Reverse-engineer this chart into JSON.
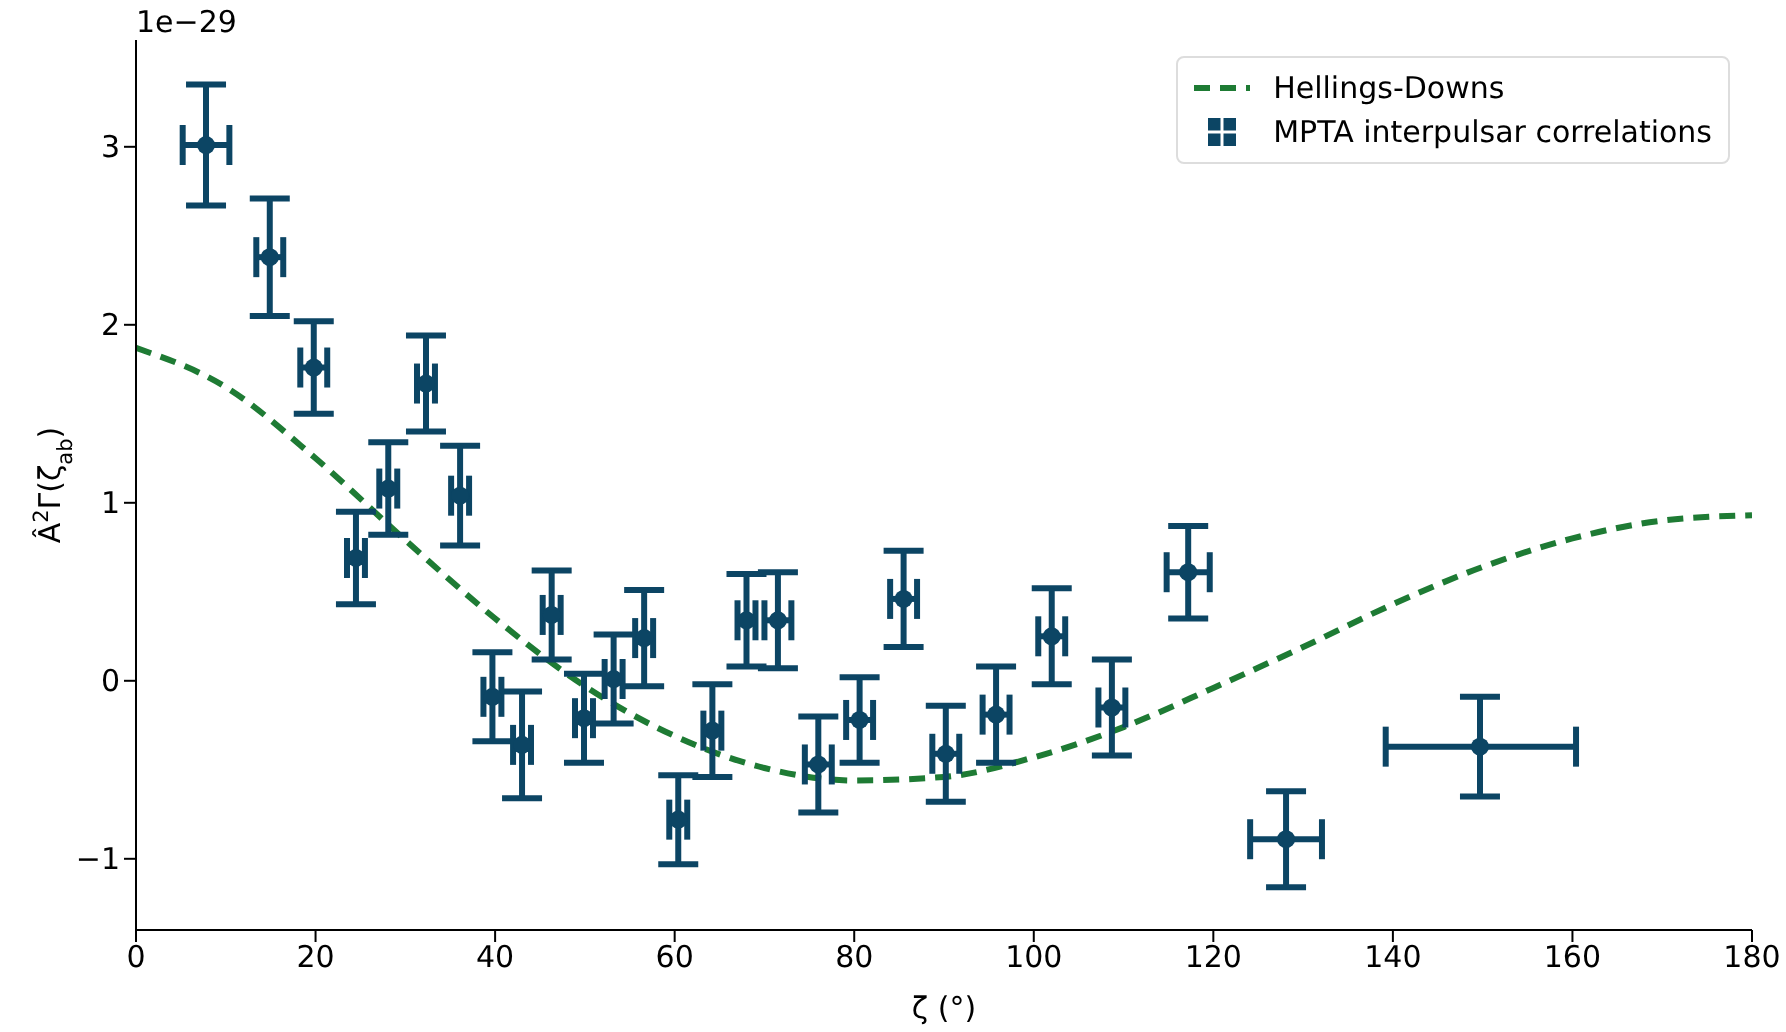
{
  "chart_data": {
    "type": "scatter",
    "xlabel": "ζ (°)",
    "ylabel": "Â$^{2}$Γ(ζ$_{ab}$)",
    "annotations": [
      "1e−29"
    ],
    "xlim": [
      0,
      180
    ],
    "xticks": [
      0,
      20,
      40,
      60,
      80,
      100,
      120,
      140,
      160,
      180
    ],
    "ylim": [
      -1.4,
      3.6
    ],
    "yticks": [
      -1,
      0,
      1,
      2,
      3
    ],
    "grid": false,
    "legend": "top right",
    "series": [
      {
        "name": "Hellings-Downs",
        "type": "line",
        "line_style": "dashed",
        "marker": "none",
        "color": "#1e7b34",
        "x": [
          0,
          10,
          20,
          30,
          40,
          50,
          60,
          70,
          80,
          90,
          100,
          110,
          120,
          130,
          140,
          150,
          160,
          170,
          180
        ],
        "values": [
          1.87,
          1.65,
          1.25,
          0.79,
          0.35,
          -0.03,
          -0.31,
          -0.49,
          -0.56,
          -0.54,
          -0.43,
          -0.26,
          -0.04,
          0.19,
          0.43,
          0.64,
          0.8,
          0.9,
          0.93
        ]
      },
      {
        "name": "MPTA interpulsar correlations",
        "marker": "circle",
        "color": "#0c4564",
        "x": [
          7.8,
          14.9,
          19.8,
          24.5,
          28.1,
          32.3,
          36.1,
          39.7,
          43,
          46.3,
          49.9,
          53.2,
          56.6,
          60.4,
          64.2,
          68,
          71.5,
          76,
          80.6,
          85.5,
          90.2,
          95.8,
          102,
          108.7,
          117.2,
          128.1,
          149.7
        ],
        "values": [
          3.01,
          2.38,
          1.76,
          0.69,
          1.08,
          1.67,
          1.04,
          -0.09,
          -0.36,
          0.37,
          -0.21,
          0.01,
          0.24,
          -0.78,
          -0.28,
          0.34,
          0.34,
          -0.47,
          -0.22,
          0.46,
          -0.41,
          -0.19,
          0.25,
          -0.15,
          0.61,
          -0.89,
          -0.37
        ],
        "errors": [
          0.34,
          0.33,
          0.26,
          0.26,
          0.26,
          0.27,
          0.28,
          0.25,
          0.3,
          0.25,
          0.25,
          0.25,
          0.27,
          0.25,
          0.26,
          0.26,
          0.27,
          0.27,
          0.24,
          0.27,
          0.27,
          0.27,
          0.27,
          0.27,
          0.26,
          0.27,
          0.28
        ],
        "xerrors": [
          2.6,
          1.5,
          1.5,
          1,
          1,
          1,
          1,
          1,
          1,
          1,
          1,
          1,
          1,
          1,
          1,
          1,
          1.5,
          1.5,
          1.5,
          1.5,
          1.5,
          1.5,
          1.5,
          1.5,
          2.4,
          4,
          [
            139.2,
            160.4
          ]
        ]
      }
    ]
  }
}
